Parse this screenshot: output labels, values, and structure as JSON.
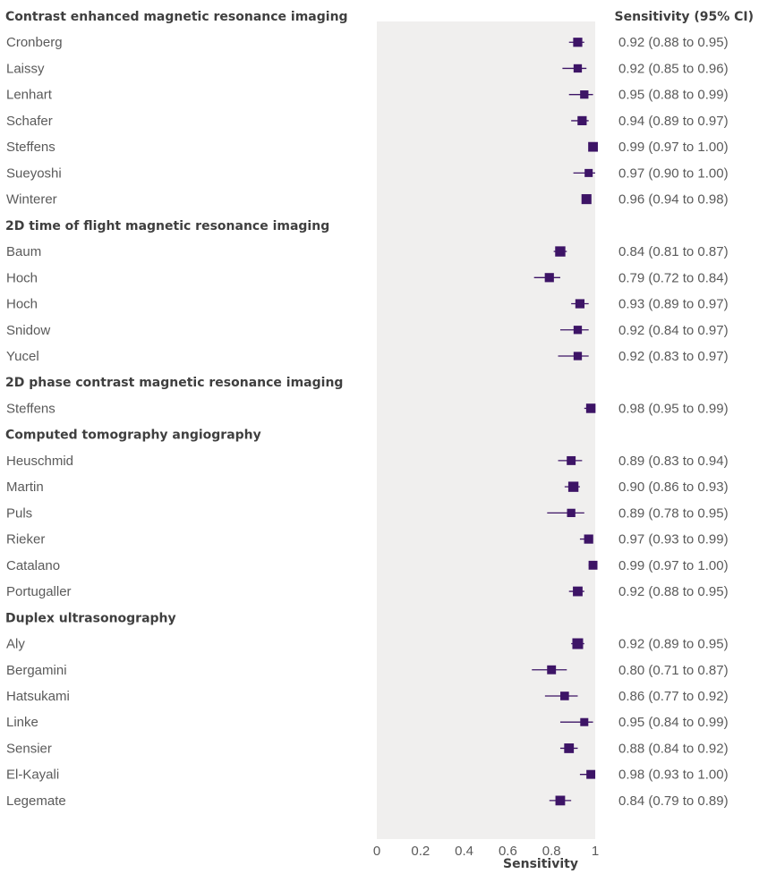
{
  "colors": {
    "marker": "#3d1466",
    "panel": "#f0efee",
    "text": "#5a5a5a",
    "heading": "#3f3f3f"
  },
  "chart_data": {
    "type": "forest",
    "xlabel": "Sensitivity",
    "xlim": [
      0,
      1
    ],
    "xticks": [
      0,
      0.2,
      0.4,
      0.6,
      0.8,
      1
    ],
    "xtick_labels": [
      "0",
      "0.2",
      "0.4",
      "0.6",
      "0.8",
      "1"
    ],
    "value_column_header": "Sensitivity (95% CI)",
    "grid": false,
    "groups": [
      {
        "name": "Contrast enhanced magnetic resonance imaging",
        "studies": [
          {
            "label": "Cronberg",
            "estimate": 0.92,
            "lower": 0.88,
            "upper": 0.95,
            "text": "0.92 (0.88 to 0.95)",
            "weight": 0.7
          },
          {
            "label": "Laissy",
            "estimate": 0.92,
            "lower": 0.85,
            "upper": 0.96,
            "text": "0.92 (0.85 to 0.96)",
            "weight": 0.55
          },
          {
            "label": "Lenhart",
            "estimate": 0.95,
            "lower": 0.88,
            "upper": 0.99,
            "text": "0.95 (0.88 to 0.99)",
            "weight": 0.55
          },
          {
            "label": "Schafer",
            "estimate": 0.94,
            "lower": 0.89,
            "upper": 0.97,
            "text": "0.94 (0.89 to 0.97)",
            "weight": 0.7
          },
          {
            "label": "Steffens",
            "estimate": 0.99,
            "lower": 0.97,
            "upper": 1.0,
            "text": "0.99 (0.97 to 1.00)",
            "weight": 0.8
          },
          {
            "label": "Sueyoshi",
            "estimate": 0.97,
            "lower": 0.9,
            "upper": 1.0,
            "text": "0.97 (0.90 to 1.00)",
            "weight": 0.5
          },
          {
            "label": "Winterer",
            "estimate": 0.96,
            "lower": 0.94,
            "upper": 0.98,
            "text": "0.96 (0.94 to 0.98)",
            "weight": 0.85
          }
        ]
      },
      {
        "name": "2D time of flight magnetic resonance imaging",
        "studies": [
          {
            "label": "Baum",
            "estimate": 0.84,
            "lower": 0.81,
            "upper": 0.87,
            "text": "0.84 (0.81 to 0.87)",
            "weight": 0.9
          },
          {
            "label": "Hoch",
            "estimate": 0.79,
            "lower": 0.72,
            "upper": 0.84,
            "text": "0.79 (0.72 to 0.84)",
            "weight": 0.7
          },
          {
            "label": "Hoch",
            "estimate": 0.93,
            "lower": 0.89,
            "upper": 0.97,
            "text": "0.93 (0.89 to 0.97)",
            "weight": 0.7
          },
          {
            "label": "Snidow",
            "estimate": 0.92,
            "lower": 0.84,
            "upper": 0.97,
            "text": "0.92 (0.84 to 0.97)",
            "weight": 0.55
          },
          {
            "label": "Yucel",
            "estimate": 0.92,
            "lower": 0.83,
            "upper": 0.97,
            "text": "0.92 (0.83 to 0.97)",
            "weight": 0.55
          }
        ]
      },
      {
        "name": "2D phase contrast magnetic resonance imaging",
        "studies": [
          {
            "label": "Steffens",
            "estimate": 0.98,
            "lower": 0.95,
            "upper": 0.99,
            "text": "0.98 (0.95 to 0.99)",
            "weight": 0.75
          }
        ]
      },
      {
        "name": "Computed tomography angiography",
        "studies": [
          {
            "label": "Heuschmid",
            "estimate": 0.89,
            "lower": 0.83,
            "upper": 0.94,
            "text": "0.89 (0.83 to 0.94)",
            "weight": 0.65
          },
          {
            "label": "Martin",
            "estimate": 0.9,
            "lower": 0.86,
            "upper": 0.93,
            "text": "0.90 (0.86 to 0.93)",
            "weight": 0.9
          },
          {
            "label": "Puls",
            "estimate": 0.89,
            "lower": 0.78,
            "upper": 0.95,
            "text": "0.89 (0.78 to 0.95)",
            "weight": 0.55
          },
          {
            "label": "Rieker",
            "estimate": 0.97,
            "lower": 0.93,
            "upper": 0.99,
            "text": "0.97 (0.93 to 0.99)",
            "weight": 0.7
          },
          {
            "label": "Catalano",
            "estimate": 0.99,
            "lower": 0.97,
            "upper": 1.0,
            "text": "0.99 (0.97 to 1.00)",
            "weight": 0.65
          },
          {
            "label": "Portugaller",
            "estimate": 0.92,
            "lower": 0.88,
            "upper": 0.95,
            "text": "0.92 (0.88 to 0.95)",
            "weight": 0.8
          }
        ]
      },
      {
        "name": "Duplex ultrasonography",
        "studies": [
          {
            "label": "Aly",
            "estimate": 0.92,
            "lower": 0.89,
            "upper": 0.95,
            "text": "0.92 (0.89 to 0.95)",
            "weight": 1.0
          },
          {
            "label": "Bergamini",
            "estimate": 0.8,
            "lower": 0.71,
            "upper": 0.87,
            "text": "0.80 (0.71 to 0.87)",
            "weight": 0.65
          },
          {
            "label": "Hatsukami",
            "estimate": 0.86,
            "lower": 0.77,
            "upper": 0.92,
            "text": "0.86 (0.77 to 0.92)",
            "weight": 0.6
          },
          {
            "label": "Linke",
            "estimate": 0.95,
            "lower": 0.84,
            "upper": 0.99,
            "text": "0.95 (0.84 to 0.99)",
            "weight": 0.5
          },
          {
            "label": "Sensier",
            "estimate": 0.88,
            "lower": 0.84,
            "upper": 0.92,
            "text": "0.88 (0.84 to 0.92)",
            "weight": 0.8
          },
          {
            "label": "El-Kayali",
            "estimate": 0.98,
            "lower": 0.93,
            "upper": 1.0,
            "text": "0.98 (0.93 to 1.00)",
            "weight": 0.65
          },
          {
            "label": "Legemate",
            "estimate": 0.84,
            "lower": 0.79,
            "upper": 0.89,
            "text": "0.84 (0.79 to 0.89)",
            "weight": 0.8
          }
        ]
      }
    ]
  }
}
